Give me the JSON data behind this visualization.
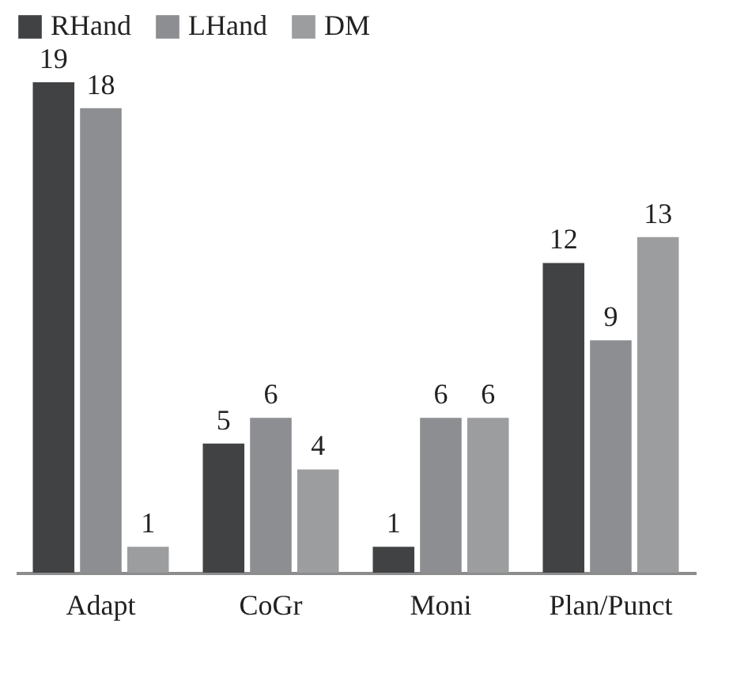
{
  "chart_data": {
    "type": "bar",
    "categories": [
      "Adapt",
      "CoGr",
      "Moni",
      "Plan/Punct"
    ],
    "series": [
      {
        "name": "RHand",
        "color": "#414244",
        "values": [
          19,
          5,
          1,
          12
        ]
      },
      {
        "name": "LHand",
        "color": "#8d8e91",
        "values": [
          18,
          6,
          6,
          9
        ]
      },
      {
        "name": "DM",
        "color": "#9c9d9f",
        "values": [
          1,
          4,
          6,
          13
        ]
      }
    ],
    "data_labels": true,
    "legend": "top"
  }
}
